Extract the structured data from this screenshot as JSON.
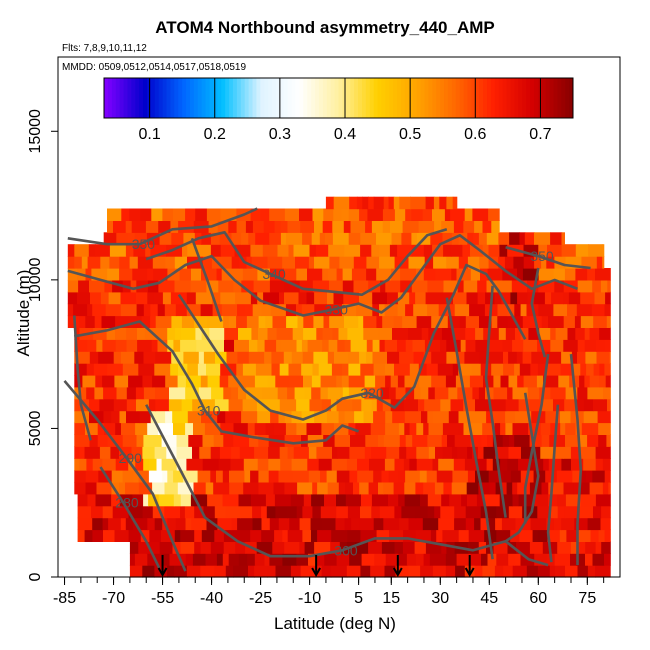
{
  "chart_data": {
    "type": "heatmap",
    "title": "ATOM4 Northbound asymmetry_440_AMP",
    "flights_note": "Flts: 7,8,9,10,11,12",
    "dates_note": "MMDD: 0509,0512,0514,0517,0518,0519",
    "xlabel": "Latitude (deg N)",
    "ylabel": "Altitude (m)",
    "xlim": [
      -87,
      85
    ],
    "ylim": [
      0,
      17500
    ],
    "x_ticks": [
      -85,
      -70,
      -55,
      -40,
      -25,
      -10,
      5,
      15,
      30,
      45,
      60,
      75
    ],
    "y_ticks": [
      0,
      5000,
      10000,
      15000
    ],
    "colorbar": {
      "range": [
        0.03,
        0.75
      ],
      "ticks": [
        0.1,
        0.2,
        0.3,
        0.4,
        0.5,
        0.6,
        0.7
      ],
      "tick_labels": [
        "0.1",
        "0.2",
        "0.3",
        "0.4",
        "0.5",
        "0.6",
        "0.7"
      ],
      "colors": [
        "#7f00ff",
        "#0000cc",
        "#0066ff",
        "#00bfff",
        "#dff3ff",
        "#ffffff",
        "#fff0a0",
        "#ffd000",
        "#ffa500",
        "#ff6a00",
        "#ff2000",
        "#d40000",
        "#8b0000"
      ]
    },
    "flight_arrow_latitudes": [
      -55,
      -8,
      17,
      39
    ],
    "contours": [
      {
        "label": "280",
        "points": [
          [
            -74,
            3700
          ],
          [
            -67,
            2500
          ],
          [
            -60,
            1200
          ],
          [
            -56,
            300
          ]
        ]
      },
      {
        "label": "290",
        "points": [
          [
            -85,
            6600
          ],
          [
            -75,
            5300
          ],
          [
            -66,
            4000
          ],
          [
            -58,
            2800
          ],
          [
            -52,
            1200
          ],
          [
            -48,
            200
          ]
        ]
      },
      {
        "label": "300",
        "points": [
          [
            -60,
            5800
          ],
          [
            -50,
            3700
          ],
          [
            -42,
            2000
          ],
          [
            -32,
            1200
          ],
          [
            -22,
            700
          ],
          [
            -10,
            700
          ],
          [
            0,
            900
          ],
          [
            10,
            1300
          ],
          [
            20,
            1300
          ],
          [
            30,
            1100
          ],
          [
            40,
            900
          ],
          [
            50,
            1200
          ],
          [
            57,
            600
          ],
          [
            63,
            400
          ]
        ]
      },
      {
        "label": "310",
        "points": [
          [
            -82,
            8100
          ],
          [
            -72,
            8300
          ],
          [
            -62,
            8600
          ],
          [
            -52,
            7600
          ],
          [
            -46,
            6500
          ],
          [
            -42,
            5600
          ],
          [
            -37,
            4900
          ],
          [
            -27,
            4700
          ],
          [
            -15,
            4500
          ],
          [
            -5,
            4600
          ],
          [
            0,
            5100
          ],
          [
            5,
            4900
          ]
        ]
      },
      {
        "label": "320",
        "points": [
          [
            -50,
            9500
          ],
          [
            -44,
            8500
          ],
          [
            -38,
            7500
          ],
          [
            -30,
            6300
          ],
          [
            -22,
            5600
          ],
          [
            -12,
            5300
          ],
          [
            -5,
            5600
          ],
          [
            0,
            6000
          ],
          [
            8,
            6200
          ],
          [
            16,
            5700
          ],
          [
            22,
            6400
          ],
          [
            28,
            8200
          ],
          [
            34,
            9500
          ],
          [
            38,
            10500
          ],
          [
            44,
            10200
          ],
          [
            48,
            9600
          ],
          [
            52,
            8800
          ],
          [
            56,
            8000
          ]
        ]
      },
      {
        "label": "330",
        "points": [
          [
            -84,
            10300
          ],
          [
            -74,
            10000
          ],
          [
            -64,
            9700
          ],
          [
            -56,
            9900
          ],
          [
            -48,
            10500
          ],
          [
            -40,
            10800
          ],
          [
            -33,
            10000
          ],
          [
            -25,
            9300
          ],
          [
            -12,
            8800
          ],
          [
            -3,
            9000
          ],
          [
            5,
            9200
          ],
          [
            12,
            8900
          ],
          [
            18,
            9400
          ],
          [
            24,
            10300
          ],
          [
            30,
            11200
          ],
          [
            36,
            11500
          ],
          [
            42,
            11000
          ],
          [
            50,
            10300
          ],
          [
            58,
            9700
          ],
          [
            65,
            10000
          ],
          [
            72,
            9700
          ]
        ]
      },
      {
        "label": "340",
        "points": [
          [
            -60,
            10700
          ],
          [
            -52,
            11000
          ],
          [
            -44,
            11400
          ],
          [
            -36,
            11600
          ],
          [
            -30,
            10600
          ],
          [
            -22,
            10200
          ],
          [
            -12,
            9700
          ],
          [
            -3,
            9600
          ],
          [
            6,
            9500
          ],
          [
            14,
            10000
          ],
          [
            20,
            10800
          ],
          [
            26,
            11500
          ],
          [
            32,
            11700
          ]
        ]
      },
      {
        "label": "350",
        "points": [
          [
            -84,
            11400
          ],
          [
            -72,
            11200
          ],
          [
            -62,
            11200
          ],
          [
            -52,
            11700
          ],
          [
            -40,
            11800
          ],
          [
            -30,
            12200
          ],
          [
            -26,
            12400
          ]
        ]
      },
      {
        "label": "350",
        "points": [
          [
            50,
            11100
          ],
          [
            60,
            10800
          ],
          [
            68,
            10500
          ],
          [
            76,
            10400
          ]
        ]
      },
      {
        "label": "",
        "points": [
          [
            56,
            6200
          ],
          [
            58,
            4800
          ],
          [
            60,
            3400
          ],
          [
            58,
            2200
          ],
          [
            54,
            1500
          ],
          [
            50,
            1200
          ]
        ]
      },
      {
        "label": "",
        "points": [
          [
            63,
            7500
          ],
          [
            61,
            5800
          ],
          [
            58,
            4200
          ],
          [
            56,
            3000
          ],
          [
            56,
            1800
          ]
        ]
      },
      {
        "label": "",
        "points": [
          [
            66,
            5800
          ],
          [
            65,
            4400
          ],
          [
            64,
            2800
          ],
          [
            63,
            1500
          ],
          [
            64,
            500
          ]
        ]
      },
      {
        "label": "",
        "points": [
          [
            70,
            7500
          ],
          [
            72,
            5300
          ],
          [
            73,
            3600
          ],
          [
            72,
            1800
          ],
          [
            72,
            400
          ]
        ]
      },
      {
        "label": "",
        "points": [
          [
            60,
            10400
          ],
          [
            58,
            9200
          ],
          [
            60,
            8200
          ],
          [
            62,
            7400
          ]
        ]
      },
      {
        "label": "",
        "points": [
          [
            32,
            9400
          ],
          [
            35,
            7600
          ],
          [
            38,
            5700
          ],
          [
            41,
            3900
          ],
          [
            44,
            2200
          ],
          [
            46,
            600
          ]
        ]
      },
      {
        "label": "",
        "points": [
          [
            46,
            9800
          ],
          [
            45,
            8300
          ],
          [
            44,
            6700
          ],
          [
            46,
            5200
          ],
          [
            48,
            3500
          ],
          [
            50,
            2000
          ]
        ]
      },
      {
        "label": "",
        "points": [
          [
            -82,
            8800
          ],
          [
            -81,
            7000
          ],
          [
            -80,
            5800
          ],
          [
            -77,
            4600
          ]
        ]
      },
      {
        "label": "",
        "points": [
          [
            -46,
            11400
          ],
          [
            -41,
            9900
          ],
          [
            -37,
            8600
          ]
        ]
      }
    ]
  }
}
